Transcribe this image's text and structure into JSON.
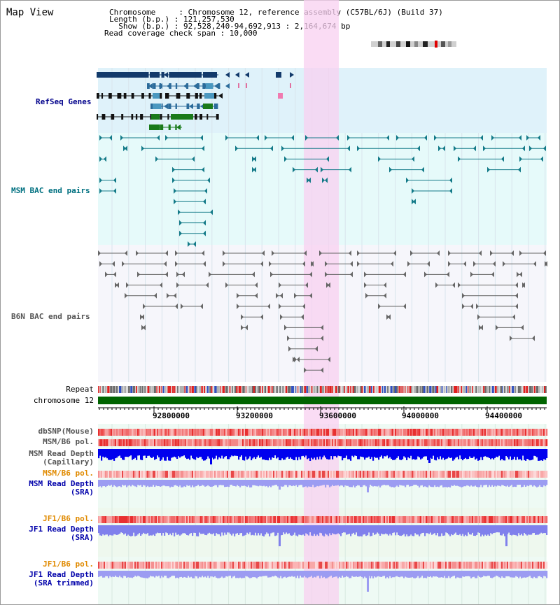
{
  "header": {
    "view_title": "Map View",
    "chromosome_line": "Chromosome     : Chromosome 12, reference assembly (C57BL/6J) (Build 37)",
    "length_line": "Length (b.p.) : 121,257,530",
    "show_line": "  Show (b.p.) : 92,528,240-94,692,913 : 2,164,674 bp",
    "coverage_line": "Read coverage check span : 10,000"
  },
  "tracks": {
    "refseq": "RefSeq Genes",
    "msm_bac": "MSM BAC end pairs",
    "b6n_bac": "B6N BAC end pairs",
    "repeat": "Repeat",
    "chromosome": "chromosome 12",
    "dbsnp": "dbSNP(Mouse)",
    "msm_b6_pol_1": "MSM/B6 pol.",
    "msm_depth_cap_1": "MSM Read Depth",
    "msm_depth_cap_2": "(Capillary)",
    "msm_b6_pol_2": "MSM/B6 pol.",
    "msm_depth_sra_1": "MSM Read Depth",
    "msm_depth_sra_2": "(SRA)",
    "jf1_b6_pol_1": "JF1/B6 pol.",
    "jf1_depth_sra_1": "JF1 Read Depth",
    "jf1_depth_sra_2": "(SRA)",
    "jf1_b6_pol_2": "JF1/B6 pol.",
    "jf1_depth_trim_1": "JF1 Read Depth",
    "jf1_depth_trim_2": "(SRA trimmed)"
  },
  "ruler": {
    "ticks": [
      "92800000",
      "93200000",
      "93600000",
      "94000000",
      "94400000"
    ]
  },
  "colors": {
    "refseq_label": "#00008b",
    "msm_label": "#007080",
    "b6n_label": "#555555",
    "orange_label": "#e08a00",
    "blue_label": "#0000aa",
    "highlight": "#f8d0f0",
    "chromosome_bar": "#006400"
  },
  "icons": {
    "chromosome_ideogram": "chromosome-ideogram-icon"
  }
}
